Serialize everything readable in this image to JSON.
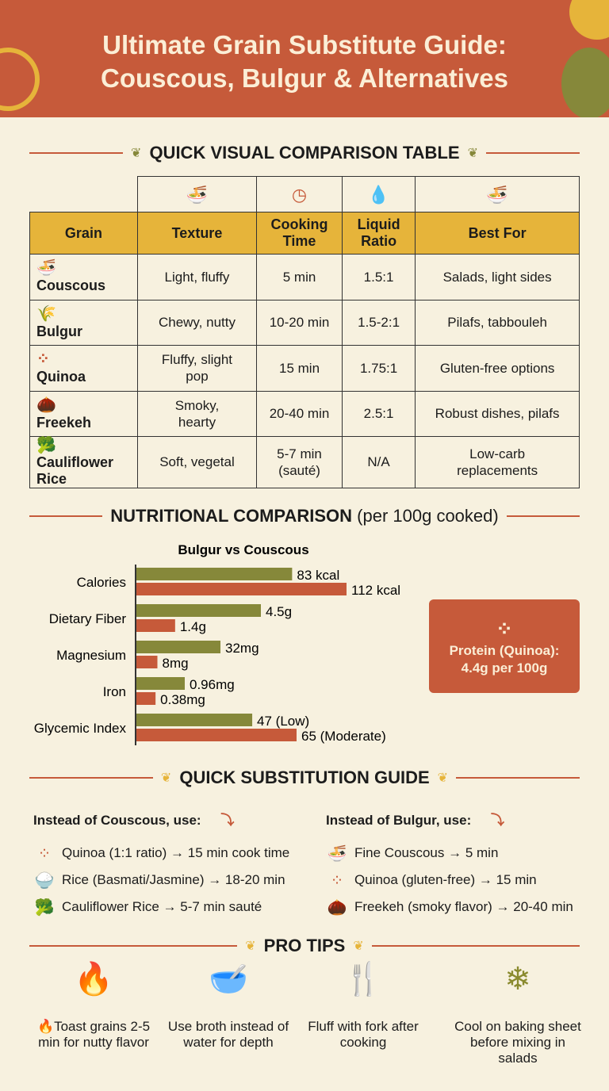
{
  "title": {
    "line1": "Ultimate Grain Substitute Guide:",
    "line2": "Couscous, Bulgur & Alternatives"
  },
  "colors": {
    "header": "#c65a3a",
    "bulgur": "#86883a",
    "couscous": "#c65a3a",
    "table_header": "#e6b43a",
    "background": "#f7f1df"
  },
  "table": {
    "title": "QUICK VISUAL COMPARISON TABLE",
    "columns": [
      "Grain",
      "Texture",
      "Cooking Time",
      "Liquid Ratio",
      "Best For"
    ],
    "column_icons": [
      "bowl-icon",
      "clock-icon",
      "droplets-icon",
      "noodle-bowl-icon"
    ],
    "rows": [
      {
        "icon": "noodle-bowl-icon",
        "glyph": "🍜",
        "grain": "Couscous",
        "texture": "Light, fluffy",
        "time": "5 min",
        "ratio": "1.5:1",
        "best": "Salads, light sides"
      },
      {
        "icon": "wheat-icon",
        "glyph": "🌾",
        "grain": "Bulgur",
        "texture": "Chewy, nutty",
        "time": "10-20 min",
        "ratio": "1.5-2:1",
        "best": "Pilafs, tabbouleh"
      },
      {
        "icon": "seeds-icon",
        "glyph": "⁘",
        "grain": "Quinoa",
        "texture": "Fluffy, slight pop",
        "time": "15 min",
        "ratio": "1.75:1",
        "best": "Gluten-free options"
      },
      {
        "icon": "grain-seed-icon",
        "glyph": "🌰",
        "grain": "Freekeh",
        "texture": "Smoky, hearty",
        "time": "20-40 min",
        "ratio": "2.5:1",
        "best": "Robust dishes, pilafs"
      },
      {
        "icon": "cauliflower-icon",
        "glyph": "🥦",
        "grain": "Cauliflower Rice",
        "texture": "Soft, vegetal",
        "time": "5-7 min (sauté)",
        "ratio": "N/A",
        "best": "Low-carb replacements"
      }
    ]
  },
  "nutrition": {
    "title": "NUTRITIONAL COMPARISON",
    "subtitle": "(per 100g cooked)"
  },
  "chart_data": {
    "type": "bar",
    "orientation": "horizontal",
    "title": "Bulgur vs Couscous",
    "categories": [
      "Calories",
      "Dietary Fiber",
      "Magnesium",
      "Iron",
      "Glycemic Index"
    ],
    "series": [
      {
        "key": "bulgur",
        "values": [
          83,
          4.5,
          32,
          0.96,
          47
        ],
        "labels": [
          "83 kcal",
          "4.5g",
          "32mg",
          "0.96mg",
          "47 (Low)"
        ]
      },
      {
        "key": "couscous",
        "values": [
          112,
          1.4,
          8,
          0.38,
          65
        ],
        "labels": [
          "112 kcal",
          "1.4g",
          "8mg",
          "0.38mg",
          "65 (Moderate)"
        ]
      }
    ],
    "legend": "none",
    "grid": false
  },
  "protein": {
    "line1": "Protein (Quinoa):",
    "line2": "4.4g per 100g"
  },
  "substitution": {
    "title": "QUICK SUBSTITUTION GUIDE",
    "left": {
      "heading": "Instead of Couscous, use:",
      "items": [
        {
          "icon": "seeds-icon",
          "glyph": "⁘",
          "text": "Quinoa (1:1 ratio) → 15 min cook time"
        },
        {
          "icon": "rice-bowl-icon",
          "glyph": "🍚",
          "text": "Rice (Basmati/Jasmine) → 18-20 min"
        },
        {
          "icon": "cauliflower-icon",
          "glyph": "🥦",
          "text": "Cauliflower Rice → 5-7 min sauté"
        }
      ]
    },
    "right": {
      "heading": "Instead of Bulgur, use:",
      "items": [
        {
          "icon": "noodle-bowl-icon",
          "glyph": "🍜",
          "text": "Fine Couscous → 5 min"
        },
        {
          "icon": "seeds-icon",
          "glyph": "⁘",
          "text": "Quinoa (gluten-free) → 15 min"
        },
        {
          "icon": "grain-seed-icon",
          "glyph": "🌰",
          "text": "Freekeh (smoky flavor) → 20-40 min"
        }
      ]
    }
  },
  "tips": {
    "title": "PRO TIPS",
    "items": [
      {
        "icon": "flame-icon",
        "glyph": "🔥",
        "text": "🔥Toast grains 2-5 min for nutty flavor"
      },
      {
        "icon": "bowl-spoon-icon",
        "glyph": "🥣",
        "text": "Use broth instead of water for depth"
      },
      {
        "icon": "fork-knife-bowl-icon",
        "glyph": "🍴",
        "text": "Fluff with fork after cooking"
      },
      {
        "icon": "baking-sheet-snowflake-icon",
        "glyph": "❄",
        "text": "Cool on baking sheet before mixing in salads"
      }
    ]
  }
}
